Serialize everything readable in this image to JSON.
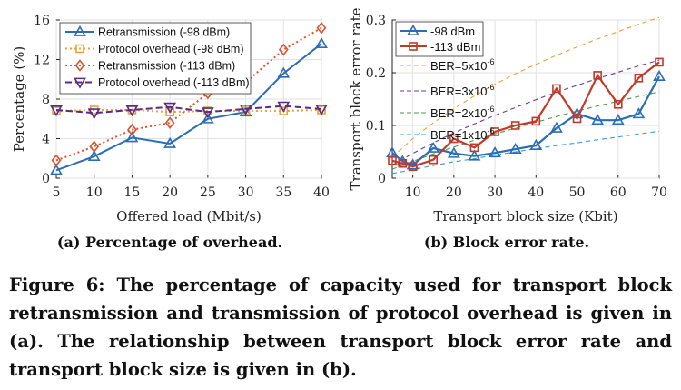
{
  "chart_data": [
    {
      "type": "line",
      "subcaption": "(a) Percentage of overhead.",
      "xlabel": "Offered load (Mbit/s)",
      "ylabel": "Percentage (%)",
      "x": [
        5,
        10,
        15,
        20,
        25,
        30,
        35,
        40
      ],
      "xlim": [
        5,
        40
      ],
      "ylim": [
        0,
        16
      ],
      "xticks": [
        "5",
        "10",
        "15",
        "20",
        "25",
        "30",
        "35",
        "40"
      ],
      "yticks": [
        "0",
        "4",
        "8",
        "12",
        "16"
      ],
      "grid": true,
      "legend_position": "top-left",
      "series": [
        {
          "name": "Retransmission (-98 dBm)",
          "values": [
            0.8,
            2.2,
            4.1,
            3.5,
            6.0,
            6.7,
            10.6,
            13.6
          ],
          "color": "#2a6db5",
          "marker": "triangle",
          "dash": "solid"
        },
        {
          "name": "Protocol overhead (-98 dBm)",
          "values": [
            6.8,
            6.9,
            6.9,
            6.7,
            6.8,
            6.8,
            6.8,
            6.9
          ],
          "color": "#e8a23a",
          "marker": "square",
          "dash": "dotted"
        },
        {
          "name": "Retransmission (-113 dBm)",
          "values": [
            1.8,
            3.2,
            4.9,
            5.6,
            8.6,
            9.7,
            13.0,
            15.2
          ],
          "color": "#d9542c",
          "marker": "diamond",
          "dash": "dotted"
        },
        {
          "name": "Protocol overhead (-113 dBm)",
          "values": [
            6.9,
            6.6,
            6.9,
            7.2,
            6.7,
            7.0,
            7.3,
            7.0
          ],
          "color": "#5b2a86",
          "marker": "triangle-down",
          "dash": "dashed"
        }
      ]
    },
    {
      "type": "line",
      "subcaption": "(b) Block error rate.",
      "xlabel": "Transport block size (Kbit)",
      "ylabel": "Transport block error rate",
      "x": [
        5,
        7.5,
        10,
        15,
        20,
        25,
        30,
        35,
        40,
        45,
        50,
        55,
        60,
        65,
        70
      ],
      "xlim": [
        5,
        70
      ],
      "ylim": [
        0,
        0.3
      ],
      "xticks": [
        "10",
        "20",
        "30",
        "40",
        "50",
        "60",
        "70"
      ],
      "yticks": [
        "0",
        "0.1",
        "0.2",
        "0.3"
      ],
      "grid": true,
      "legend_position": "top-left",
      "series": [
        {
          "name": "-98 dBm",
          "values": [
            0.048,
            0.032,
            0.025,
            0.057,
            0.047,
            0.042,
            0.048,
            0.055,
            0.062,
            0.095,
            0.122,
            0.11,
            0.11,
            0.122,
            0.193
          ],
          "color": "#2a6db5",
          "marker": "triangle"
        },
        {
          "name": "-113 dBm",
          "values": [
            0.033,
            0.028,
            0.022,
            0.035,
            0.075,
            0.058,
            0.088,
            0.1,
            0.108,
            0.17,
            0.113,
            0.195,
            0.14,
            0.19,
            0.22
          ],
          "color": "#c0392b",
          "marker": "square"
        }
      ],
      "ber_curves": [
        {
          "label_base": "BER=5x10",
          "label_exp": "-6",
          "color": "#e8a23a",
          "values": [
            0.04,
            0.075,
            0.105,
            0.132,
            0.156,
            0.178,
            0.198,
            0.216,
            0.233,
            0.249,
            0.264,
            0.278,
            0.292,
            0.305
          ]
        },
        {
          "label_base": "BER=3x10",
          "label_exp": "-6",
          "color": "#6a3a96",
          "values": [
            0.025,
            0.047,
            0.067,
            0.086,
            0.103,
            0.119,
            0.134,
            0.149,
            0.163,
            0.176,
            0.189,
            0.201,
            0.213,
            0.224
          ]
        },
        {
          "label_base": "BER=2x10",
          "label_exp": "-6",
          "color": "#4a9a4a",
          "values": [
            0.017,
            0.032,
            0.046,
            0.059,
            0.072,
            0.084,
            0.095,
            0.106,
            0.117,
            0.127,
            0.137,
            0.146,
            0.155,
            0.164
          ]
        },
        {
          "label_base": "BER=1x10",
          "label_exp": "-6",
          "color": "#3a9ad9",
          "values": [
            0.009,
            0.016,
            0.024,
            0.031,
            0.037,
            0.044,
            0.05,
            0.056,
            0.062,
            0.067,
            0.073,
            0.078,
            0.084,
            0.089
          ]
        }
      ],
      "ber_x": [
        5,
        10,
        15,
        20,
        25,
        30,
        35,
        40,
        45,
        50,
        55,
        60,
        65,
        70
      ]
    }
  ],
  "caption": "Figure 6: The percentage of capacity used for transport block retransmission and transmission of protocol overhead is given in (a). The relationship between transport block error rate and transport block size is given in (b)."
}
